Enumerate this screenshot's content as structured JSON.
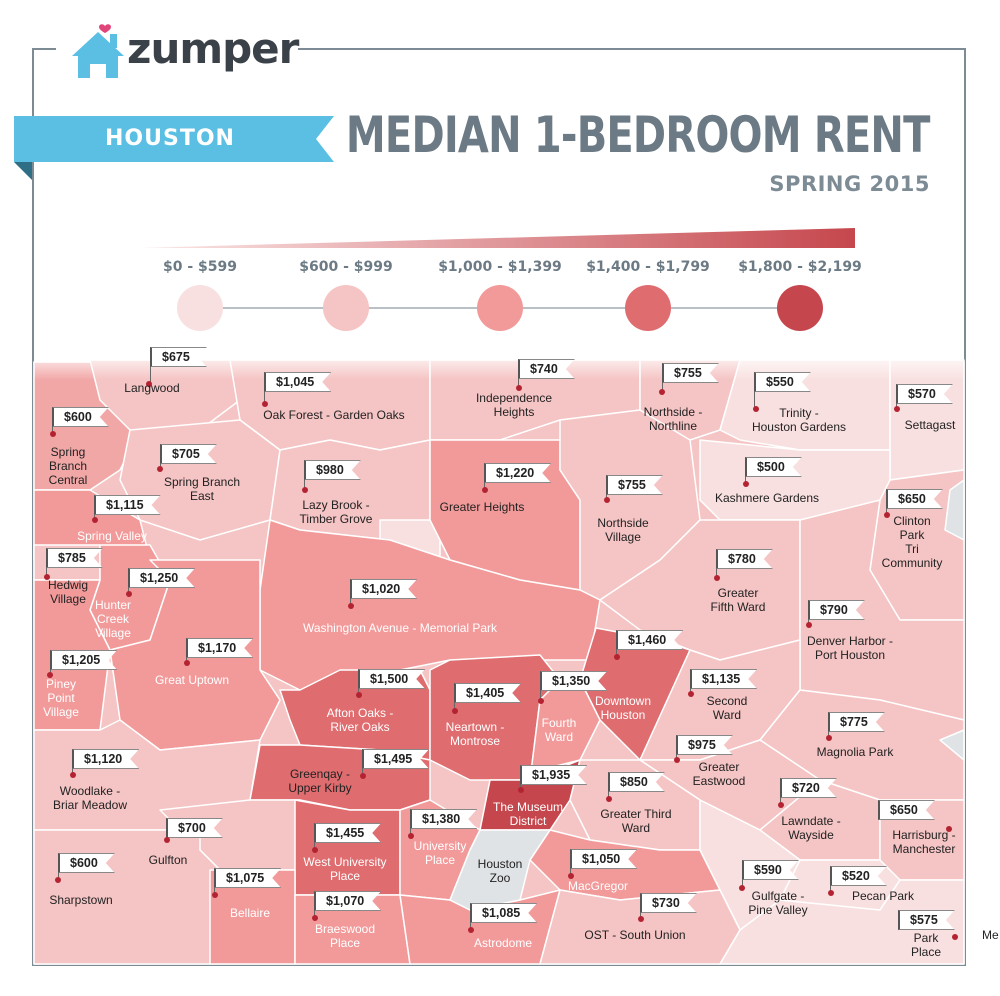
{
  "header": {
    "logo_text": "zumper",
    "city": "HOUSTON",
    "title": "MEDIAN 1-BEDROOM RENT",
    "subtitle": "SPRING 2015"
  },
  "colors": {
    "brand_blue": "#5bbfe3",
    "frame_gray": "#7d8b95",
    "pin_red": "#b42332"
  },
  "legend": [
    {
      "label": "$0 - $599",
      "color": "#f9e0e0"
    },
    {
      "label": "$600 - $999",
      "color": "#f5c4c4"
    },
    {
      "label": "$1,000 - $1,399",
      "color": "#f29a9a"
    },
    {
      "label": "$1,400 - $1,799",
      "color": "#df6c6f"
    },
    {
      "label": "$1,800 - $2,199",
      "color": "#c5474d"
    }
  ],
  "neighborhoods": [
    {
      "name": "Langwood",
      "price": "$675"
    },
    {
      "name": "Oak Forest - Garden Oaks",
      "price": "$1,045"
    },
    {
      "name": "Independence\nHeights",
      "price": "$740"
    },
    {
      "name": "Northside -\nNorthline",
      "price": "$755"
    },
    {
      "name": "Trinity -\nHouston Gardens",
      "price": "$550"
    },
    {
      "name": "Settagast",
      "price": "$570"
    },
    {
      "name": "Spring\nBranch\nCentral",
      "price": "$600"
    },
    {
      "name": "Spring Branch\nEast",
      "price": "$705"
    },
    {
      "name": "Lazy Brook -\nTimber Grove",
      "price": "$980"
    },
    {
      "name": "Greater Heights",
      "price": "$1,220"
    },
    {
      "name": "Kashmere Gardens",
      "price": "$500"
    },
    {
      "name": "Northside\nVillage",
      "price": "$755"
    },
    {
      "name": "Clinton\nPark\nTri\nCommunity",
      "price": "$650"
    },
    {
      "name": "Spring Valley",
      "price": "$1,115"
    },
    {
      "name": "Hedwig\nVillage",
      "price": "$785"
    },
    {
      "name": "Hunter\nCreek\nVillage",
      "price": "$1,250"
    },
    {
      "name": "Washington Avenue - Memorial Park",
      "price": "$1,020"
    },
    {
      "name": "Greater\nFifth Ward",
      "price": "$780"
    },
    {
      "name": "Denver Harbor -\nPort Houston",
      "price": "$790"
    },
    {
      "name": "Great Uptown",
      "price": "$1,170"
    },
    {
      "name": "Piney\nPoint\nVillage",
      "price": "$1,205"
    },
    {
      "name": "Downtown\nHouston",
      "price": "$1,460"
    },
    {
      "name": "Afton Oaks -\nRiver Oaks",
      "price": "$1,500"
    },
    {
      "name": "Neartown -\nMontrose",
      "price": "$1,405"
    },
    {
      "name": "Fourth\nWard",
      "price": "$1,350"
    },
    {
      "name": "Second\nWard",
      "price": "$1,135"
    },
    {
      "name": "Magnolia Park",
      "price": "$775"
    },
    {
      "name": "Woodlake -\nBriar Meadow",
      "price": "$1,120"
    },
    {
      "name": "Greenqay -\nUpper Kirby",
      "price": "$1,495"
    },
    {
      "name": "Greater\nEastwood",
      "price": "$975"
    },
    {
      "name": "The Museum\nDistrict",
      "price": "$1,935"
    },
    {
      "name": "Greater Third\nWard",
      "price": "$850"
    },
    {
      "name": "Lawndate -\nWayside",
      "price": "$720"
    },
    {
      "name": "Harrisburg -\nManchester",
      "price": "$650"
    },
    {
      "name": "Gulfton",
      "price": "$700"
    },
    {
      "name": "West University\nPlace",
      "price": "$1,455"
    },
    {
      "name": "University\nPlace",
      "price": "$1,380"
    },
    {
      "name": "Sharpstown",
      "price": "$600"
    },
    {
      "name": "MacGregor",
      "price": "$1,050"
    },
    {
      "name": "Gulfgate -\nPine Valley",
      "price": "$590"
    },
    {
      "name": "Pecan Park",
      "price": "$520"
    },
    {
      "name": "Bellaire",
      "price": "$1,075"
    },
    {
      "name": "Braeswood\nPlace",
      "price": "$1,070"
    },
    {
      "name": "Astrodome",
      "price": "$1,085"
    },
    {
      "name": "OST - South Union",
      "price": "$730"
    },
    {
      "name": "Park\nPlace",
      "price": "$575"
    }
  ],
  "unpriced_areas": [
    {
      "name": "Houston\nZoo"
    },
    {
      "name": "Me"
    }
  ]
}
